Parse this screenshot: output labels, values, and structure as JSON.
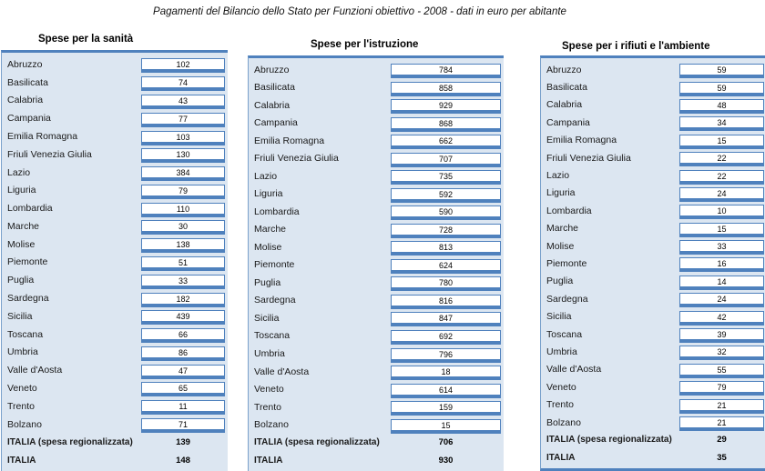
{
  "title": "Pagamenti del Bilancio dello Stato per Funzioni  obiettivo - 2008 - dati in euro per abitante",
  "colors": {
    "panel_bg": "#dce6f1",
    "accent_blue": "#4f81bd",
    "box_bg": "#ffffff"
  },
  "tables": [
    {
      "header": "Spese per la sanità",
      "rows": [
        {
          "label": "Abruzzo",
          "value": "102"
        },
        {
          "label": "Basilicata",
          "value": "74"
        },
        {
          "label": "Calabria",
          "value": "43"
        },
        {
          "label": "Campania",
          "value": "77"
        },
        {
          "label": "Emilia Romagna",
          "value": "103"
        },
        {
          "label": "Friuli Venezia Giulia",
          "value": "130"
        },
        {
          "label": "Lazio",
          "value": "384"
        },
        {
          "label": "Liguria",
          "value": "79"
        },
        {
          "label": "Lombardia",
          "value": "110"
        },
        {
          "label": "Marche",
          "value": "30"
        },
        {
          "label": "Molise",
          "value": "138"
        },
        {
          "label": "Piemonte",
          "value": "51"
        },
        {
          "label": "Puglia",
          "value": "33"
        },
        {
          "label": "Sardegna",
          "value": "182"
        },
        {
          "label": "Sicilia",
          "value": "439"
        },
        {
          "label": "Toscana",
          "value": "66"
        },
        {
          "label": "Umbria",
          "value": "86"
        },
        {
          "label": "Valle d'Aosta",
          "value": "47"
        },
        {
          "label": "Veneto",
          "value": "65"
        },
        {
          "label": "Trento",
          "value": "11"
        },
        {
          "label": "Bolzano",
          "value": "71"
        },
        {
          "label": "ITALIA (spesa regionalizzata)",
          "value": "139",
          "summary": true
        },
        {
          "label": "ITALIA",
          "value": "148",
          "summary": true
        }
      ]
    },
    {
      "header": "Spese per l'istruzione",
      "rows": [
        {
          "label": "Abruzzo",
          "value": "784"
        },
        {
          "label": "Basilicata",
          "value": "858"
        },
        {
          "label": "Calabria",
          "value": "929"
        },
        {
          "label": "Campania",
          "value": "868"
        },
        {
          "label": "Emilia Romagna",
          "value": "662"
        },
        {
          "label": "Friuli Venezia Giulia",
          "value": "707"
        },
        {
          "label": "Lazio",
          "value": "735"
        },
        {
          "label": "Liguria",
          "value": "592"
        },
        {
          "label": "Lombardia",
          "value": "590"
        },
        {
          "label": "Marche",
          "value": "728"
        },
        {
          "label": "Molise",
          "value": "813"
        },
        {
          "label": "Piemonte",
          "value": "624"
        },
        {
          "label": "Puglia",
          "value": "780"
        },
        {
          "label": "Sardegna",
          "value": "816"
        },
        {
          "label": "Sicilia",
          "value": "847"
        },
        {
          "label": "Toscana",
          "value": "692"
        },
        {
          "label": "Umbria",
          "value": "796"
        },
        {
          "label": "Valle d'Aosta",
          "value": "18"
        },
        {
          "label": "Veneto",
          "value": "614"
        },
        {
          "label": "Trento",
          "value": "159"
        },
        {
          "label": "Bolzano",
          "value": "15"
        },
        {
          "label": "ITALIA (spesa regionalizzata)",
          "value": "706",
          "summary": true
        },
        {
          "label": "ITALIA",
          "value": "930",
          "summary": true
        }
      ]
    },
    {
      "header": "Spese per i rifiuti e l'ambiente",
      "rows": [
        {
          "label": "Abruzzo",
          "value": "59"
        },
        {
          "label": "Basilicata",
          "value": "59"
        },
        {
          "label": "Calabria",
          "value": "48"
        },
        {
          "label": "Campania",
          "value": "34"
        },
        {
          "label": "Emilia Romagna",
          "value": "15"
        },
        {
          "label": "Friuli Venezia Giulia",
          "value": "22"
        },
        {
          "label": "Lazio",
          "value": "22"
        },
        {
          "label": "Liguria",
          "value": "24"
        },
        {
          "label": "Lombardia",
          "value": "10"
        },
        {
          "label": "Marche",
          "value": "15"
        },
        {
          "label": "Molise",
          "value": "33"
        },
        {
          "label": "Piemonte",
          "value": "16"
        },
        {
          "label": "Puglia",
          "value": "14"
        },
        {
          "label": "Sardegna",
          "value": "24"
        },
        {
          "label": "Sicilia",
          "value": "42"
        },
        {
          "label": "Toscana",
          "value": "39"
        },
        {
          "label": "Umbria",
          "value": "32"
        },
        {
          "label": "Valle d'Aosta",
          "value": "55"
        },
        {
          "label": "Veneto",
          "value": "79"
        },
        {
          "label": "Trento",
          "value": "21"
        },
        {
          "label": "Bolzano",
          "value": "21"
        },
        {
          "label": "ITALIA (spesa regionalizzata)",
          "value": "29",
          "summary": true
        },
        {
          "label": "ITALIA",
          "value": "35",
          "summary": true
        }
      ]
    }
  ]
}
